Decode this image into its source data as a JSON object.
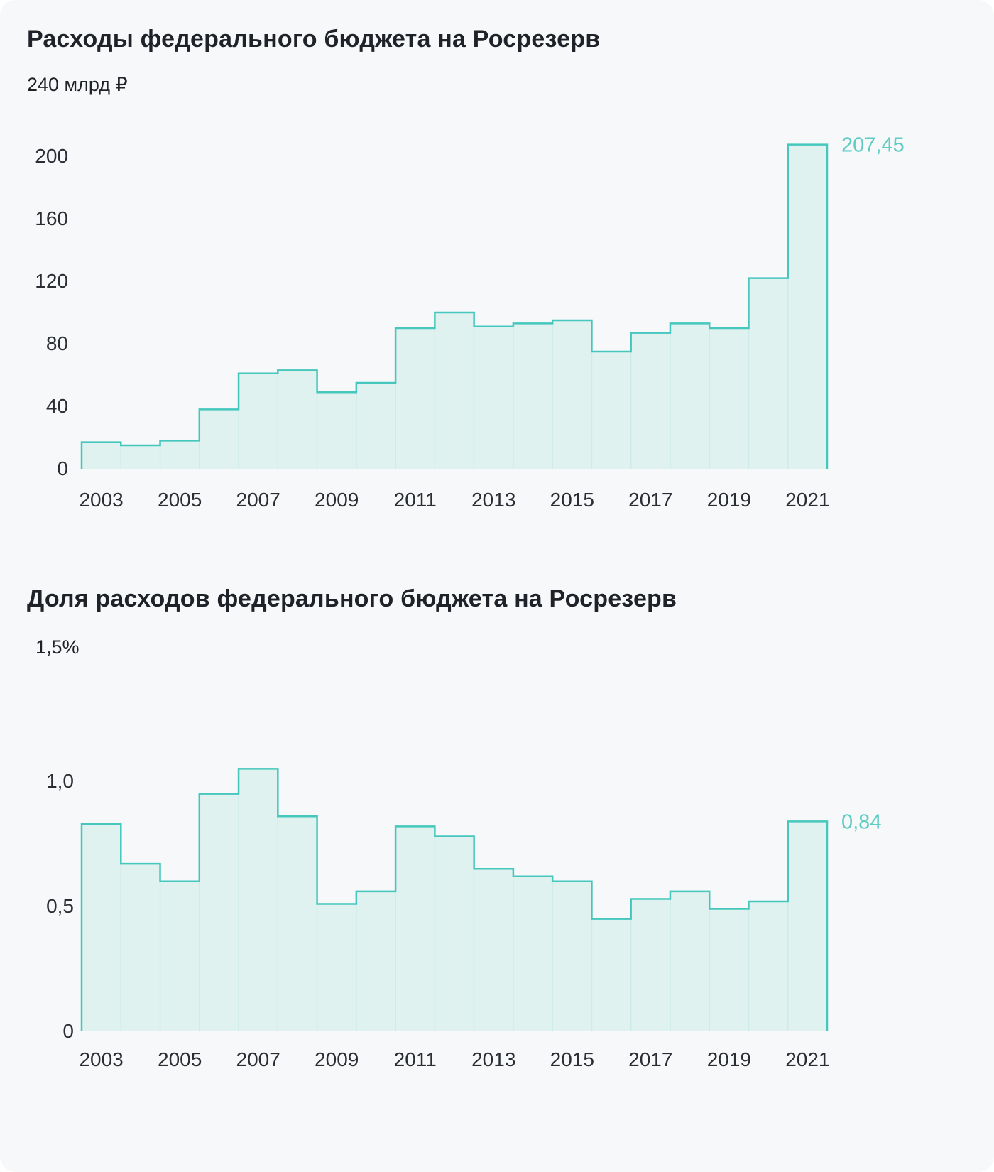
{
  "colors": {
    "card_bg": "#f7f8f9",
    "accent": "#45c7bd",
    "fill": "rgba(69,199,189,0.13)",
    "separator": "#cdebe8",
    "value_label": "#5fcdc4",
    "text": "#1f2228"
  },
  "chart_data": [
    {
      "type": "area",
      "subtype": "step-area",
      "title": "Расходы федерального бюджета на Росрезерв",
      "unit_label": "240 млрд ₽",
      "ylabel": "млрд ₽",
      "xlabel": "",
      "years": [
        2003,
        2004,
        2005,
        2006,
        2007,
        2008,
        2009,
        2010,
        2011,
        2012,
        2013,
        2014,
        2015,
        2016,
        2017,
        2018,
        2019,
        2020,
        2021
      ],
      "values": [
        17,
        15,
        18,
        38,
        61,
        63,
        49,
        55,
        90,
        100,
        91,
        93,
        95,
        75,
        87,
        93,
        90,
        122,
        207.45
      ],
      "ylim": [
        0,
        240
      ],
      "yticks": [
        0,
        40,
        80,
        120,
        160,
        200
      ],
      "ytick_labels": [
        "0",
        "40",
        "80",
        "120",
        "160",
        "200"
      ],
      "xticks": [
        2003,
        2005,
        2007,
        2009,
        2011,
        2013,
        2015,
        2017,
        2019,
        2021
      ],
      "grid": false,
      "legend": "none",
      "last_value_label": "207,45"
    },
    {
      "type": "area",
      "subtype": "step-area",
      "title": "Доля расходов федерального бюджета на Росрезерв",
      "unit_label": "1,5%",
      "ylabel": "%",
      "xlabel": "",
      "years": [
        2003,
        2004,
        2005,
        2006,
        2007,
        2008,
        2009,
        2010,
        2011,
        2012,
        2013,
        2014,
        2015,
        2016,
        2017,
        2018,
        2019,
        2020,
        2021
      ],
      "values": [
        0.83,
        0.67,
        0.6,
        0.95,
        1.05,
        0.86,
        0.51,
        0.56,
        0.82,
        0.78,
        0.65,
        0.62,
        0.6,
        0.45,
        0.53,
        0.56,
        0.49,
        0.52,
        0.84
      ],
      "ylim": [
        0,
        1.5
      ],
      "yticks": [
        0,
        0.5,
        1.0
      ],
      "ytick_labels": [
        "0",
        "0,5",
        "1,0"
      ],
      "xticks": [
        2003,
        2005,
        2007,
        2009,
        2011,
        2013,
        2015,
        2017,
        2019,
        2021
      ],
      "grid": false,
      "legend": "none",
      "last_value_label": "0,84"
    }
  ]
}
